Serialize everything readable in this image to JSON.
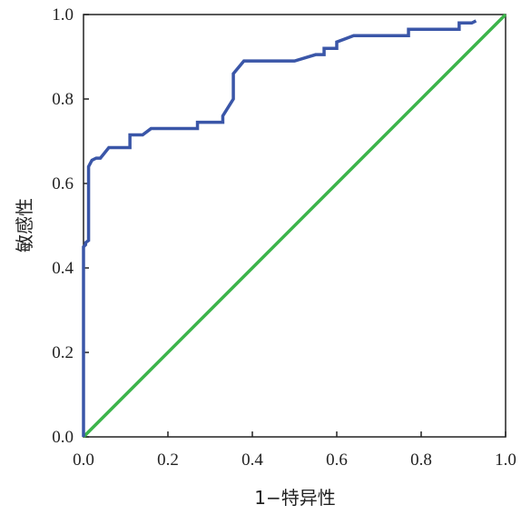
{
  "chart_data": {
    "type": "line",
    "xlabel": "1−特异性",
    "ylabel": "敏感性",
    "xlim": [
      0,
      1
    ],
    "ylim": [
      0,
      1
    ],
    "x_ticks": [
      "0.0",
      "0.2",
      "0.4",
      "0.6",
      "0.8",
      "1.0"
    ],
    "y_ticks": [
      "0.0",
      "0.2",
      "0.4",
      "0.6",
      "0.8",
      "1.0"
    ],
    "grid": false,
    "legend": "none",
    "series": [
      {
        "color": "#3a56a8",
        "x": [
          0,
          0,
          0.005,
          0.005,
          0.012,
          0.012,
          0.02,
          0.03,
          0.04,
          0.06,
          0.11,
          0.11,
          0.14,
          0.16,
          0.27,
          0.27,
          0.33,
          0.33,
          0.355,
          0.355,
          0.38,
          0.5,
          0.55,
          0.57,
          0.57,
          0.6,
          0.6,
          0.64,
          0.77,
          0.77,
          0.89,
          0.89,
          0.92,
          0.93
        ],
        "y": [
          0,
          0.45,
          0.455,
          0.46,
          0.465,
          0.64,
          0.655,
          0.66,
          0.66,
          0.685,
          0.685,
          0.715,
          0.715,
          0.73,
          0.73,
          0.745,
          0.745,
          0.76,
          0.8,
          0.86,
          0.89,
          0.89,
          0.905,
          0.905,
          0.92,
          0.92,
          0.935,
          0.95,
          0.95,
          0.965,
          0.965,
          0.98,
          0.98,
          0.985
        ]
      },
      {
        "color": "#3cb44b",
        "x": [
          0,
          1
        ],
        "y": [
          0,
          1
        ]
      }
    ]
  }
}
